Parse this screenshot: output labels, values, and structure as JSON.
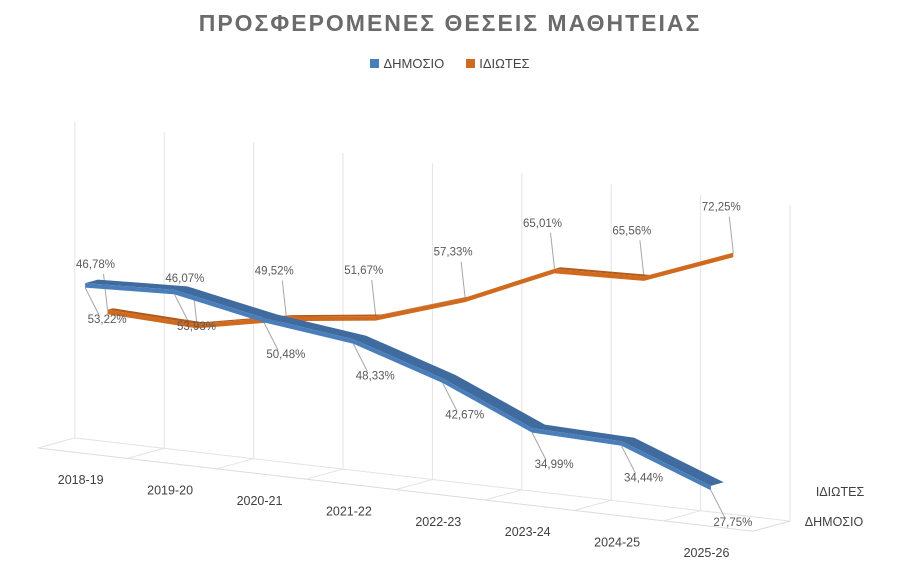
{
  "chart_data": {
    "type": "line",
    "title": "ΠΡΟΣΦΕΡΟΜΕΝΕΣ ΘΕΣΕΙΣ ΜΑΘΗΤΕΙΑΣ",
    "categories": [
      "2018-19",
      "2019-20",
      "2020-21",
      "2021-22",
      "2022-23",
      "2023-24",
      "2024-25",
      "2025-26"
    ],
    "series": [
      {
        "name": "ΔΗΜΟΣΙΟ",
        "color": "#4a7ebb",
        "values": [
          53.22,
          53.93,
          50.48,
          48.33,
          42.67,
          34.99,
          34.44,
          27.75
        ],
        "labels": [
          "53,22%",
          "53,93%",
          "50,48%",
          "48,33%",
          "42,67%",
          "34,99%",
          "34,44%",
          "27,75%"
        ]
      },
      {
        "name": "ΙΔΙΩΤΕΣ",
        "color": "#d06a1e",
        "values": [
          46.78,
          46.07,
          49.52,
          51.67,
          57.33,
          65.01,
          65.56,
          72.25
        ],
        "labels": [
          "46,78%",
          "46,07%",
          "49,52%",
          "51,67%",
          "57,33%",
          "65,01%",
          "65,56%",
          "72,25%"
        ]
      }
    ],
    "depth_axis_labels": [
      "ΙΔΙΩΤΕΣ",
      "ΔΗΜΟΣΙΟ"
    ],
    "xlabel": "",
    "ylabel": "",
    "ylim": [
      20,
      80
    ],
    "grid": true,
    "legend": "top-center",
    "style": "3d-line"
  }
}
